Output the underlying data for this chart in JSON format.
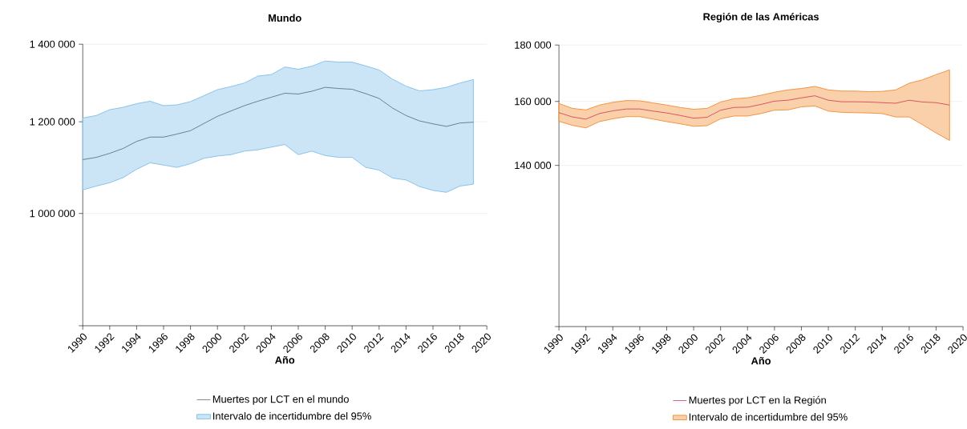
{
  "chart_data": [
    {
      "type": "line",
      "title": "Mundo",
      "xlabel": "Año",
      "log": "y",
      "grid": "y",
      "legend": "bottom",
      "x": [
        1990,
        1991,
        1992,
        1993,
        1994,
        1995,
        1996,
        1997,
        1998,
        1999,
        2000,
        2001,
        2002,
        2003,
        2004,
        2005,
        2006,
        2007,
        2008,
        2009,
        2010,
        2011,
        2012,
        2013,
        2014,
        2015,
        2016,
        2017,
        2018,
        2019
      ],
      "xlim": [
        1990,
        2020
      ],
      "xticks": [
        1990,
        1992,
        1994,
        1996,
        1998,
        2000,
        2002,
        2004,
        2006,
        2008,
        2010,
        2012,
        2014,
        2016,
        2018,
        2020
      ],
      "ylim": [
        800000,
        1400000
      ],
      "yticks": [
        {
          "value": 800000,
          "label": null
        },
        {
          "value": 1000000,
          "label": "1 000 000"
        },
        {
          "value": 1200000,
          "label": "1 200 000"
        },
        {
          "value": 1400000,
          "label": "1 400 000"
        }
      ],
      "series": [
        {
          "name": "Muertes por LCT en el mundo",
          "color": "#3d5566",
          "values": [
            1113000,
            1118000,
            1127000,
            1138000,
            1154000,
            1164000,
            1164000,
            1171000,
            1179000,
            1196000,
            1213000,
            1226000,
            1239000,
            1250000,
            1260000,
            1270000,
            1268000,
            1275000,
            1285000,
            1282000,
            1280000,
            1269000,
            1257000,
            1233000,
            1215000,
            1202000,
            1195000,
            1189000,
            1197000,
            1199000
          ],
          "upper": [
            1209000,
            1215000,
            1229000,
            1235000,
            1244000,
            1250000,
            1239000,
            1241000,
            1249000,
            1264000,
            1279000,
            1287000,
            1296000,
            1314000,
            1318000,
            1338000,
            1332000,
            1340000,
            1354000,
            1351000,
            1351000,
            1341000,
            1330000,
            1306000,
            1288000,
            1276000,
            1279000,
            1285000,
            1296000,
            1305000
          ],
          "lower": [
            1048000,
            1056000,
            1063000,
            1074000,
            1092000,
            1106000,
            1101000,
            1096000,
            1104000,
            1116000,
            1121000,
            1124000,
            1132000,
            1135000,
            1141000,
            1147000,
            1124000,
            1132000,
            1122000,
            1118000,
            1118000,
            1096000,
            1090000,
            1073000,
            1069000,
            1055000,
            1047000,
            1043000,
            1056000,
            1060000
          ]
        },
        {
          "name": "Intervalo de incertidumbre del 95%",
          "type": "area",
          "color": "#7dbde8",
          "values": [
            null,
            null,
            null,
            null,
            null,
            null,
            null,
            null,
            null,
            null,
            null,
            null,
            null,
            null,
            null,
            null,
            null,
            null,
            null,
            null,
            null,
            null,
            null,
            null,
            null,
            null,
            null,
            null,
            null,
            null
          ]
        }
      ]
    },
    {
      "type": "line",
      "title": "Región de las Américas",
      "xlabel": "Año",
      "log": "y",
      "grid": "y",
      "legend": "bottom",
      "x": [
        1990,
        1991,
        1992,
        1993,
        1994,
        1995,
        1996,
        1997,
        1998,
        1999,
        2000,
        2001,
        2002,
        2003,
        2004,
        2005,
        2006,
        2007,
        2008,
        2009,
        2010,
        2011,
        2012,
        2013,
        2014,
        2015,
        2016,
        2017,
        2018,
        2019
      ],
      "xlim": [
        1990,
        2020
      ],
      "xticks": [
        1990,
        1992,
        1994,
        1996,
        1998,
        2000,
        2002,
        2004,
        2006,
        2008,
        2010,
        2012,
        2014,
        2016,
        2018,
        2020
      ],
      "ylim": [
        100000,
        180000
      ],
      "yticks": [
        {
          "value": 100000,
          "label": null
        },
        {
          "value": 140000,
          "label": "140 000"
        },
        {
          "value": 160000,
          "label": "160 000"
        },
        {
          "value": 180000,
          "label": "180 000"
        }
      ],
      "series": [
        {
          "name": "Muertes por LCT en la Región",
          "color": "#c8203c",
          "values": [
            156300,
            154900,
            154200,
            156000,
            156900,
            157500,
            157500,
            156800,
            156200,
            155400,
            154500,
            154800,
            157100,
            158000,
            158100,
            159000,
            160100,
            160400,
            161200,
            161900,
            160400,
            159900,
            159900,
            159800,
            159600,
            159400,
            160400,
            159800,
            159600,
            158800
          ],
          "upper": [
            159300,
            157700,
            157200,
            158800,
            159700,
            160300,
            160200,
            159500,
            158800,
            158000,
            157400,
            157700,
            159800,
            160900,
            161200,
            162100,
            163100,
            163900,
            164400,
            165100,
            163900,
            163500,
            163500,
            163300,
            163400,
            163900,
            166200,
            167400,
            169200,
            170900
          ],
          "lower": [
            153500,
            152200,
            151400,
            153400,
            154300,
            155000,
            155000,
            154200,
            153400,
            152700,
            151900,
            152100,
            154300,
            155200,
            155200,
            156000,
            157100,
            157200,
            158200,
            158500,
            156800,
            156400,
            156300,
            156200,
            156000,
            154900,
            154900,
            152400,
            149800,
            147500
          ]
        },
        {
          "name": "Intervalo de incertidumbre del 95%",
          "type": "area",
          "color": "#f28a2e",
          "values": [
            null,
            null,
            null,
            null,
            null,
            null,
            null,
            null,
            null,
            null,
            null,
            null,
            null,
            null,
            null,
            null,
            null,
            null,
            null,
            null,
            null,
            null,
            null,
            null,
            null,
            null,
            null,
            null,
            null,
            null
          ]
        }
      ]
    }
  ]
}
